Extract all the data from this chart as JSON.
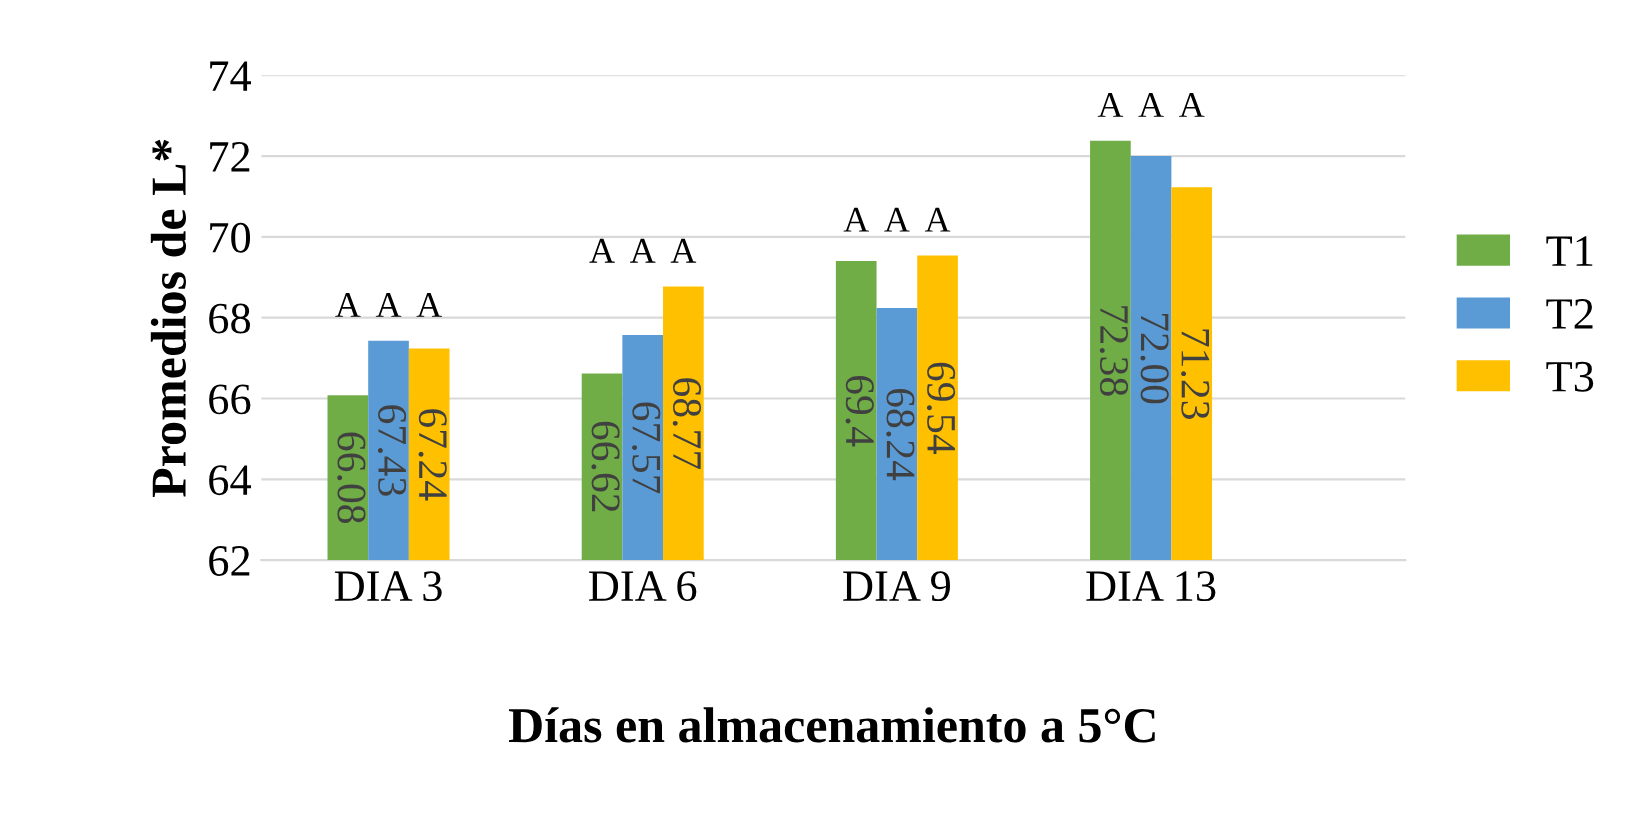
{
  "chart_data": {
    "type": "bar",
    "xlabel": "Días en almacenamiento a 5°C",
    "ylabel": "Promedios de L*",
    "categories": [
      "DIA 3",
      "DIA 6",
      "DIA 9",
      "DIA 13"
    ],
    "series": [
      {
        "name": "T1",
        "color": "#70ad47",
        "values": [
          66.08,
          66.62,
          69.4,
          72.38
        ],
        "value_labels": [
          "66.08",
          "66.62",
          "69.4",
          "72.38"
        ]
      },
      {
        "name": "T2",
        "color": "#5b9bd5",
        "values": [
          67.43,
          67.57,
          68.24,
          72.0
        ],
        "value_labels": [
          "67.43",
          "67.57",
          "68.24",
          "72.00"
        ]
      },
      {
        "name": "T3",
        "color": "#ffc000",
        "values": [
          67.24,
          68.77,
          69.54,
          71.23
        ],
        "value_labels": [
          "67.24",
          "68.77",
          "69.54",
          "71.23"
        ]
      }
    ],
    "ylim": [
      62,
      74
    ],
    "yticks": [
      62,
      64,
      66,
      68,
      70,
      72,
      74
    ],
    "grid": "y",
    "legend": "right",
    "annotations": [
      "A",
      "A",
      "A",
      "A",
      "A",
      "A",
      "A",
      "A",
      "A",
      "A",
      "A",
      "A"
    ]
  }
}
